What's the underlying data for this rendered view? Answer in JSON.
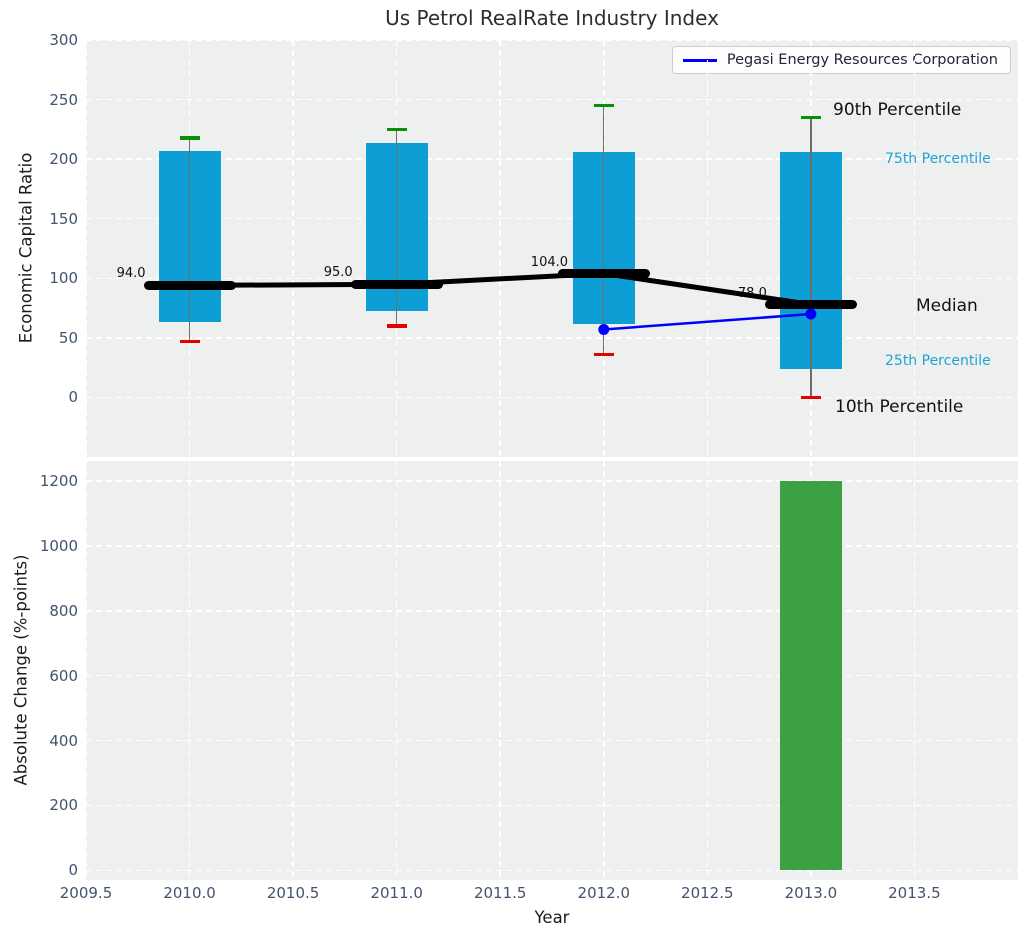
{
  "title": "Us Petrol RealRate Industry Index",
  "legend": {
    "label": "Pegasi Energy Resources Corporation"
  },
  "colors": {
    "box_fill": "#0d9ed5",
    "bar_fill": "#3ba143",
    "whisker": "#6e6e6e",
    "cap_top": "#0b8f0b",
    "cap_bottom": "#e50000",
    "median": "#000000",
    "company_line": "#0000ff",
    "plot_bg": "#edf0ef",
    "grid": "#ffffff",
    "tick_label": "#42536e",
    "cyan_label": "#1ea3d8",
    "dark_label": "#111111"
  },
  "chart_data": [
    {
      "type": "box-percentiles",
      "title": "Us Petrol RealRate Industry Index",
      "ylabel": "Economic Capital Ratio",
      "xlim": [
        2009.5,
        2014.0
      ],
      "ylim": [
        -50,
        300
      ],
      "yticks": [
        0,
        50,
        100,
        150,
        200,
        250,
        300
      ],
      "grid": true,
      "legend_position": "upper right",
      "years": [
        2010,
        2011,
        2012,
        2013
      ],
      "percentiles": {
        "p10": [
          47,
          60,
          36,
          0
        ],
        "p25": [
          63,
          73,
          62,
          24
        ],
        "median": [
          94.0,
          95.0,
          104.0,
          78.0
        ],
        "p75": [
          207,
          214,
          206,
          206
        ],
        "p90": [
          218,
          225,
          245,
          235
        ]
      },
      "median_annotations": [
        "94.0",
        "95.0",
        "104.0",
        "78.0"
      ],
      "percentile_labels": [
        {
          "text": "90th Percentile",
          "style": "dark"
        },
        {
          "text": "75th Percentile",
          "style": "cyan"
        },
        {
          "text": "Median",
          "style": "dark"
        },
        {
          "text": "25th Percentile",
          "style": "cyan"
        },
        {
          "text": "10th Percentile",
          "style": "dark"
        }
      ],
      "company_series": {
        "name": "Pegasi Energy Resources Corporation",
        "x": [
          2012,
          2013
        ],
        "y": [
          57,
          70
        ]
      }
    },
    {
      "type": "bar",
      "ylabel": "Absolute Change (%-points)",
      "xlabel": "Year",
      "xlim": [
        2009.5,
        2014.0
      ],
      "ylim": [
        -30,
        1262
      ],
      "yticks": [
        0,
        200,
        400,
        600,
        800,
        1000,
        1200
      ],
      "xtick_labels": [
        "2009.5",
        "2010.0",
        "2010.5",
        "2011.0",
        "2011.5",
        "2012.0",
        "2012.5",
        "2013.0",
        "2013.5"
      ],
      "xtick_values": [
        2009.5,
        2010.0,
        2010.5,
        2011.0,
        2011.5,
        2012.0,
        2012.5,
        2013.0,
        2013.5
      ],
      "bars": [
        {
          "x": 2013,
          "value": 1200
        }
      ],
      "grid": true
    }
  ]
}
